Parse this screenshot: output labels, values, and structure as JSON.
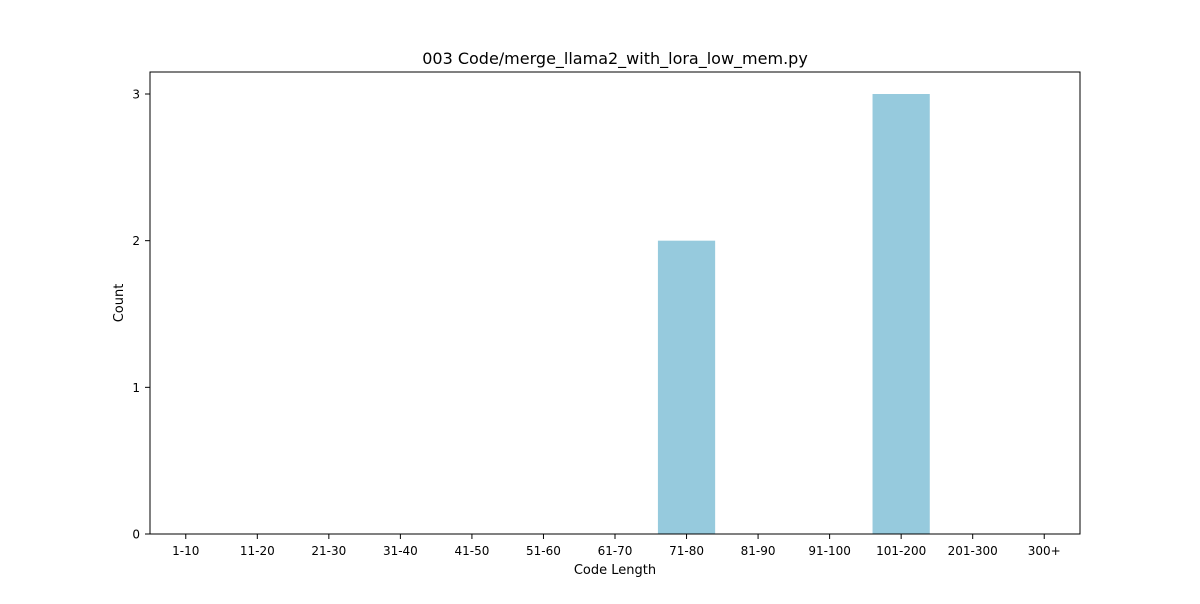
{
  "chart_data": {
    "type": "bar",
    "title": "003 Code/merge_llama2_with_lora_low_mem.py",
    "xlabel": "Code Length",
    "ylabel": "Count",
    "categories": [
      "1-10",
      "11-20",
      "21-30",
      "31-40",
      "41-50",
      "51-60",
      "61-70",
      "71-80",
      "81-90",
      "91-100",
      "101-200",
      "201-300",
      "300+"
    ],
    "values": [
      0,
      0,
      0,
      0,
      0,
      0,
      0,
      2,
      0,
      0,
      3,
      0,
      0
    ],
    "yticks": [
      0,
      1,
      2,
      3
    ],
    "ylim": [
      0,
      3.15
    ],
    "grid": false,
    "bar_color": "#96cadd"
  }
}
